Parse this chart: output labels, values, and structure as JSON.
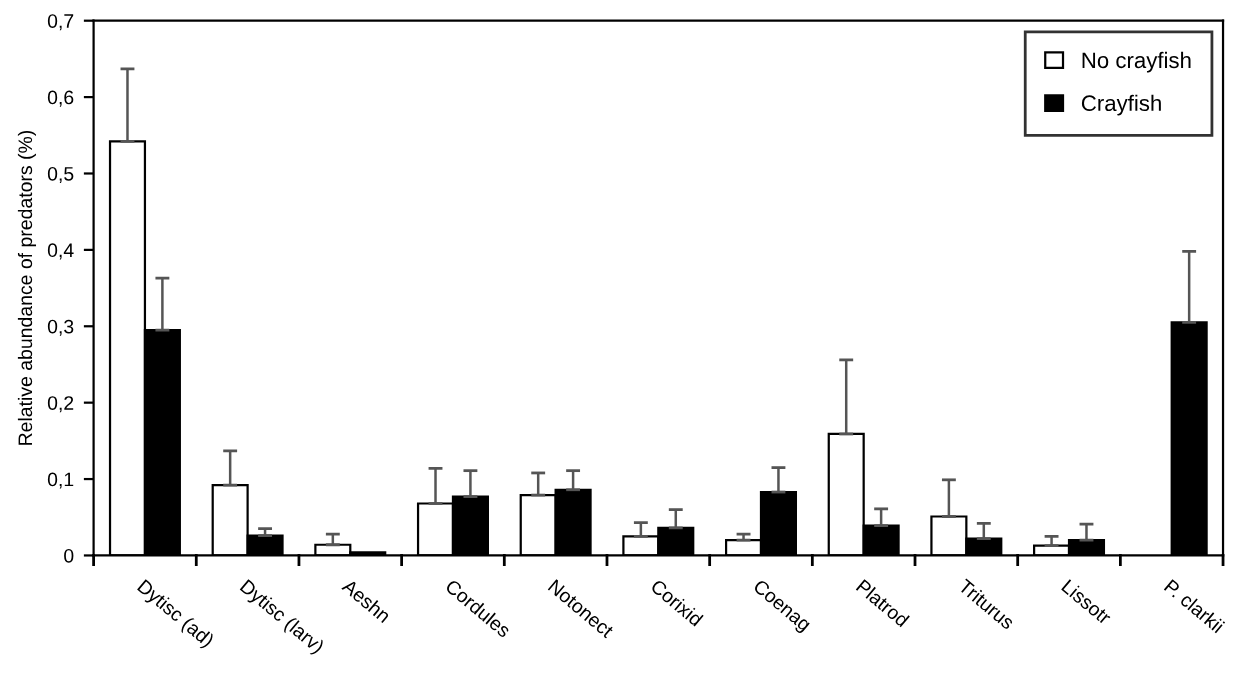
{
  "chart_data": {
    "type": "bar",
    "ylabel": "Relative abundance of predators (%)",
    "categories": [
      "Dytisc (ad)",
      "Dytisc (larv)",
      "Aeshn",
      "Cordules",
      "Notonect",
      "Corixid",
      "Coenag",
      "Platrod",
      "Triturus",
      "Lissotr",
      "P. clarkii"
    ],
    "series": [
      {
        "name": "No crayfish",
        "color": "#ffffff",
        "values": [
          0.542,
          0.092,
          0.014,
          0.068,
          0.079,
          0.025,
          0.02,
          0.159,
          0.051,
          0.013,
          null
        ],
        "errors": [
          [
            0.542,
            0.637
          ],
          [
            0.092,
            0.137
          ],
          [
            0.014,
            0.028
          ],
          [
            0.068,
            0.114
          ],
          [
            0.079,
            0.108
          ],
          [
            0.025,
            0.043
          ],
          [
            0.02,
            0.028
          ],
          [
            0.159,
            0.256
          ],
          [
            0.051,
            0.099
          ],
          [
            0.013,
            0.025
          ],
          null
        ]
      },
      {
        "name": "Crayfish",
        "color": "#000000",
        "values": [
          0.295,
          0.026,
          0.004,
          0.077,
          0.086,
          0.036,
          0.083,
          0.039,
          0.022,
          0.02,
          0.305
        ],
        "errors": [
          [
            0.295,
            0.363
          ],
          [
            0.026,
            0.035
          ],
          null,
          [
            0.077,
            0.111
          ],
          [
            0.086,
            0.111
          ],
          [
            0.036,
            0.06
          ],
          [
            0.083,
            0.115
          ],
          [
            0.039,
            0.061
          ],
          [
            0.022,
            0.042
          ],
          [
            0.02,
            0.041
          ],
          [
            0.305,
            0.398
          ]
        ]
      }
    ],
    "ylim": [
      0,
      0.7
    ],
    "yticks": [
      0,
      {
        "value": 0.1,
        "label": "0,1"
      },
      {
        "value": 0.2,
        "label": "0,2"
      },
      {
        "value": 0.3,
        "label": "0,3"
      },
      {
        "value": 0.4,
        "label": "0,4"
      },
      {
        "value": 0.5,
        "label": "0,5"
      },
      {
        "value": 0.6,
        "label": "0,6"
      },
      {
        "value": 0.7,
        "label": "0,7"
      }
    ],
    "legend": "top right"
  }
}
